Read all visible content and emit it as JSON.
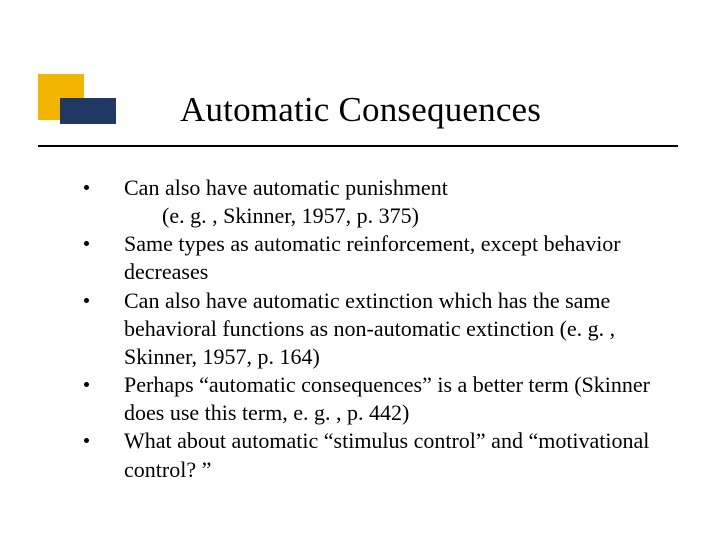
{
  "slide": {
    "title": "Automatic Consequences",
    "bullets": [
      {
        "text": "Can also have automatic punishment",
        "sub": "(e. g. , Skinner, 1957, p. 375)"
      },
      {
        "text": "Same types as automatic reinforcement, except behavior decreases"
      },
      {
        "text": "Can also have automatic extinction which has the same behavioral functions as non-automatic extinction (e. g. , Skinner, 1957, p. 164)"
      },
      {
        "text": "Perhaps “automatic consequences” is a better term (Skinner does use this term, e. g. , p. 442)"
      },
      {
        "text": "What about automatic “stimulus control” and “motivational control? ”"
      }
    ],
    "colors": {
      "accent_yellow": "#f2b600",
      "accent_navy": "#203864",
      "rule": "#000000",
      "background": "#ffffff",
      "text": "#000000"
    },
    "typography": {
      "title_fontsize": 35,
      "body_fontsize": 22,
      "font_family": "Times New Roman"
    }
  }
}
